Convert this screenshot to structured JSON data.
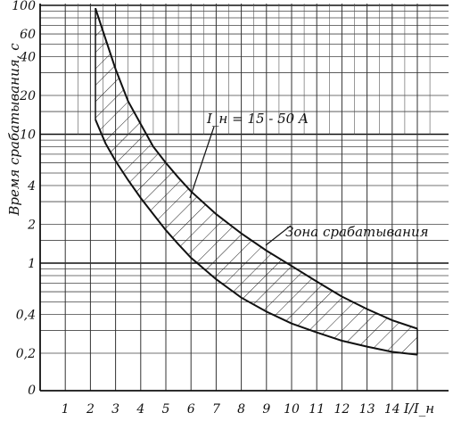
{
  "chart_data": {
    "type": "area",
    "x_label": "I/I_н",
    "y_label": "Время срабатывания, с",
    "x_range": [
      0,
      15.2
    ],
    "y_scale": "log",
    "y_range": [
      0.2,
      100
    ],
    "grid": true,
    "x_ticks": [
      "1",
      "2",
      "3",
      "4",
      "5",
      "6",
      "7",
      "8",
      "9",
      "10",
      "11",
      "12",
      "13",
      "14"
    ],
    "y_ticks": [
      {
        "value": 100,
        "label": "100"
      },
      {
        "value": 60,
        "label": "60"
      },
      {
        "value": 40,
        "label": "40"
      },
      {
        "value": 20,
        "label": "20"
      },
      {
        "value": 10,
        "label": "10"
      },
      {
        "value": 4,
        "label": "4"
      },
      {
        "value": 2,
        "label": "2"
      },
      {
        "value": 1,
        "label": "1"
      },
      {
        "value": 0.4,
        "label": "0,4"
      },
      {
        "value": 0.2,
        "label": "0,2"
      }
    ],
    "y_zero_label": "0",
    "upper_curve": {
      "x": [
        2.2,
        2.6,
        3.0,
        3.5,
        4.0,
        4.5,
        5.0,
        5.5,
        6.0,
        7.0,
        8.0,
        9.0,
        10.0,
        11.0,
        12.0,
        13.0,
        14.0,
        15.0
      ],
      "y": [
        95,
        55,
        32,
        18,
        12,
        8,
        6,
        4.6,
        3.6,
        2.4,
        1.7,
        1.25,
        0.95,
        0.72,
        0.55,
        0.44,
        0.36,
        0.31
      ]
    },
    "lower_curve": {
      "x": [
        2.2,
        2.6,
        3.0,
        3.5,
        4.0,
        4.5,
        5.0,
        5.5,
        6.0,
        7.0,
        8.0,
        9.0,
        10.0,
        11.0,
        12.0,
        13.0,
        14.0,
        15.0
      ],
      "y": [
        13,
        8.5,
        6.2,
        4.4,
        3.2,
        2.4,
        1.8,
        1.4,
        1.1,
        0.75,
        0.54,
        0.42,
        0.34,
        0.29,
        0.25,
        0.225,
        0.205,
        0.195
      ]
    },
    "annotations": {
      "rating": "I_н = 15 - 50 A",
      "zone": "Зона срабатывания"
    }
  }
}
